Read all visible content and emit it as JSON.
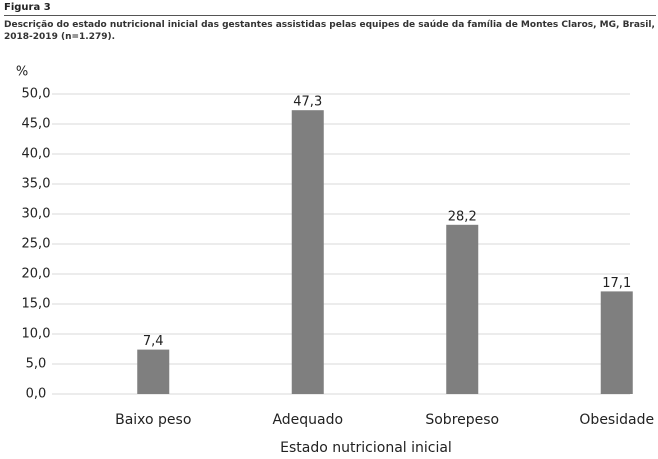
{
  "chart_data": {
    "type": "bar",
    "figure_label": "Figura 3",
    "title": "Descrição do estado nutricional inicial das gestantes assistidas pelas equipes de saúde da família de Montes Claros, MG, Brasil, 2018-2019 (n=1.279).",
    "y_label": "%",
    "x_label": "Estado nutricional inicial",
    "categories": [
      "Baixo peso",
      "Adequado",
      "Sobrepeso",
      "Obesidade"
    ],
    "values": [
      7.4,
      47.3,
      28.2,
      17.1
    ],
    "value_labels": [
      "7,4",
      "47,3",
      "28,2",
      "17,1"
    ],
    "color": "#7f7f7f",
    "ylim": [
      0,
      50
    ],
    "yticks": [
      {
        "value": 0,
        "label": "0,0"
      },
      {
        "value": 5,
        "label": "5,0"
      },
      {
        "value": 10,
        "label": "10,0"
      },
      {
        "value": 15,
        "label": "15,0"
      },
      {
        "value": 20,
        "label": "20,0"
      },
      {
        "value": 25,
        "label": "25,0"
      },
      {
        "value": 30,
        "label": "30,0"
      },
      {
        "value": 35,
        "label": "35,0"
      },
      {
        "value": 40,
        "label": "40,0"
      },
      {
        "value": 45,
        "label": "45,0"
      },
      {
        "value": 50,
        "label": "50,0"
      }
    ],
    "grid": true
  }
}
